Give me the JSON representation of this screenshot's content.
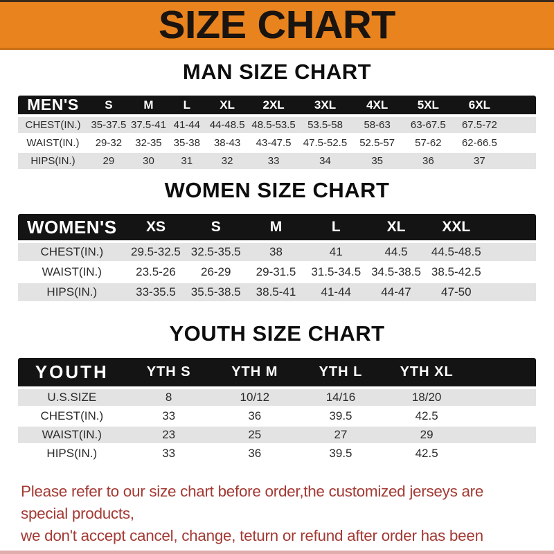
{
  "banner": {
    "title": "SIZE CHART"
  },
  "sections": [
    {
      "heading": "MAN SIZE CHART",
      "corner": "MEN'S",
      "columns": [
        "S",
        "M",
        "L",
        "XL",
        "2XL",
        "3XL",
        "4XL",
        "5XL",
        "6XL"
      ],
      "rows": [
        {
          "label": "CHEST(IN.)",
          "values": [
            "35-37.5",
            "37.5-41",
            "41-44",
            "44-48.5",
            "48.5-53.5",
            "53.5-58",
            "58-63",
            "63-67.5",
            "67.5-72"
          ]
        },
        {
          "label": "WAIST(IN.)",
          "values": [
            "29-32",
            "32-35",
            "35-38",
            "38-43",
            "43-47.5",
            "47.5-52.5",
            "52.5-57",
            "57-62",
            "62-66.5"
          ]
        },
        {
          "label": "HIPS(IN.)",
          "values": [
            "29",
            "30",
            "31",
            "32",
            "33",
            "34",
            "35",
            "36",
            "37"
          ]
        }
      ]
    },
    {
      "heading": "WOMEN SIZE CHART",
      "corner": "WOMEN'S",
      "columns": [
        "XS",
        "S",
        "M",
        "L",
        "XL",
        "XXL"
      ],
      "rows": [
        {
          "label": "CHEST(IN.)",
          "values": [
            "29.5-32.5",
            "32.5-35.5",
            "38",
            "41",
            "44.5",
            "44.5-48.5"
          ]
        },
        {
          "label": "WAIST(IN.)",
          "values": [
            "23.5-26",
            "26-29",
            "29-31.5",
            "31.5-34.5",
            "34.5-38.5",
            "38.5-42.5"
          ]
        },
        {
          "label": "HIPS(IN.)",
          "values": [
            "33-35.5",
            "35.5-38.5",
            "38.5-41",
            "41-44",
            "44-47",
            "47-50"
          ]
        }
      ]
    },
    {
      "heading": "YOUTH SIZE CHART",
      "corner": "YOUTH",
      "columns": [
        "YTH S",
        "YTH M",
        "YTH L",
        "YTH XL"
      ],
      "rows": [
        {
          "label": "U.S.SIZE",
          "values": [
            "8",
            "10/12",
            "14/16",
            "18/20"
          ]
        },
        {
          "label": "CHEST(IN.)",
          "values": [
            "33",
            "36",
            "39.5",
            "42.5"
          ]
        },
        {
          "label": "WAIST(IN.)",
          "values": [
            "23",
            "25",
            "27",
            "29"
          ]
        },
        {
          "label": "HIPS(IN.)",
          "values": [
            "33",
            "36",
            "39.5",
            "42.5"
          ]
        }
      ]
    }
  ],
  "footer": {
    "line1": "Please refer to our size chart before order,the customized jerseys are special products,",
    "line2": "we don't accept cancel, change, teturn or refund after order has been placed!"
  },
  "colors": {
    "banner_bg": "#E8831E",
    "banner_edge": "#C96F15",
    "top_strip": "#3A2B1C",
    "header_bar": "#141414",
    "row_gray": "#E3E3E3",
    "footer_red": "#A33A34",
    "bottom_strip": "#E0ACAC"
  }
}
